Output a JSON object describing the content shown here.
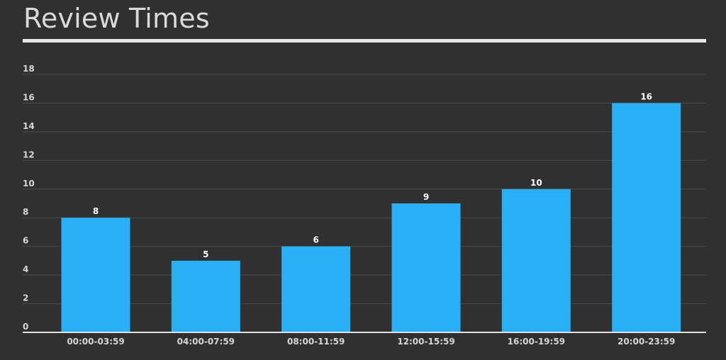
{
  "chart_data": {
    "type": "bar",
    "title": "Review Times",
    "categories": [
      "00:00-03:59",
      "04:00-07:59",
      "08:00-11:59",
      "12:00-15:59",
      "16:00-19:59",
      "20:00-23:59"
    ],
    "values": [
      8,
      5,
      6,
      9,
      10,
      16
    ],
    "ylim": [
      0,
      18
    ],
    "yticks": [
      0,
      2,
      4,
      6,
      8,
      10,
      12,
      14,
      16,
      18
    ],
    "grid": true,
    "data_labels": true,
    "colors": {
      "bar": "#29b0f6",
      "background": "#303030",
      "grid": "#4a4a4a",
      "axis": "#e0e0e0"
    }
  }
}
